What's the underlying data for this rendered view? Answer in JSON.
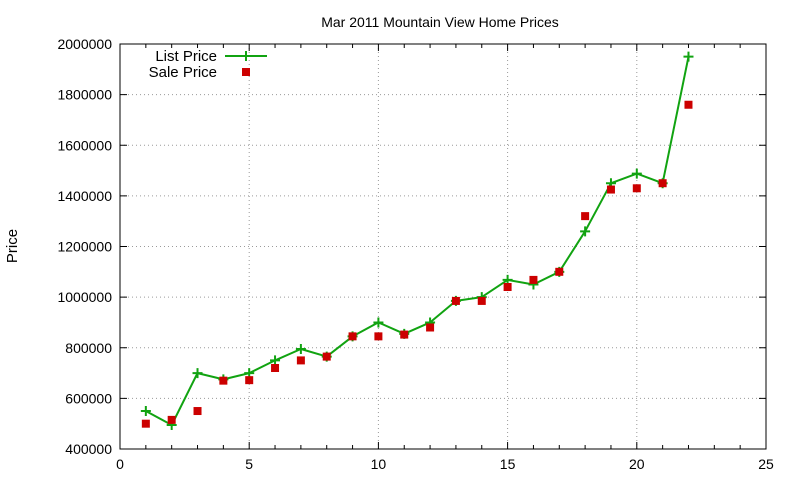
{
  "chart_data": {
    "type": "line",
    "title": "Mar 2011 Mountain View Home Prices",
    "xlabel": "",
    "ylabel": "Price",
    "xlim": [
      0,
      25
    ],
    "ylim": [
      400000,
      2000000
    ],
    "x_ticks": [
      "0",
      "5",
      "10",
      "15",
      "20",
      "25"
    ],
    "y_ticks": [
      "400000",
      "600000",
      "800000",
      "1000000",
      "1200000",
      "1400000",
      "1600000",
      "1800000",
      "2000000"
    ],
    "grid": true,
    "legend_position": "top-left",
    "x": [
      1,
      2,
      3,
      4,
      5,
      6,
      7,
      8,
      9,
      10,
      11,
      12,
      13,
      14,
      15,
      16,
      17,
      18,
      19,
      20,
      21,
      22
    ],
    "series": [
      {
        "name": "List Price",
        "style": "line-with-plus-markers",
        "color": "#11a311",
        "values": [
          550000,
          495000,
          700000,
          675000,
          700000,
          750000,
          795000,
          765000,
          845000,
          900000,
          855000,
          900000,
          985000,
          1000000,
          1068000,
          1050000,
          1100000,
          1260000,
          1450000,
          1488000,
          1450000,
          1950000
        ]
      },
      {
        "name": "Sale Price",
        "style": "square-markers",
        "color": "#cc0000",
        "values": [
          500000,
          515000,
          550000,
          670000,
          672000,
          720000,
          750000,
          765000,
          845000,
          845000,
          852000,
          880000,
          985000,
          985000,
          1040000,
          1068000,
          1100000,
          1320000,
          1425000,
          1430000,
          1450000,
          1760000
        ]
      }
    ]
  }
}
